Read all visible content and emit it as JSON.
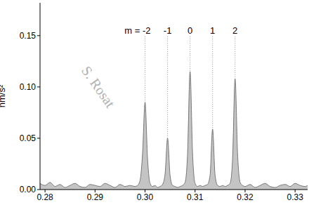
{
  "chart_data": {
    "type": "area",
    "ylabel": "nm/s²",
    "watermark": "S. Rosat",
    "color": "#c4c4c4",
    "x": [
      0.279,
      0.28,
      0.281,
      0.282,
      0.283,
      0.284,
      0.285,
      0.286,
      0.287,
      0.288,
      0.289,
      0.29,
      0.291,
      0.292,
      0.293,
      0.294,
      0.295,
      0.296,
      0.297,
      0.298,
      0.2985,
      0.299,
      0.2995,
      0.3,
      0.3005,
      0.301,
      0.3015,
      0.302,
      0.3025,
      0.303,
      0.3035,
      0.304,
      0.3045,
      0.305,
      0.3055,
      0.306,
      0.3065,
      0.307,
      0.3075,
      0.308,
      0.3085,
      0.309,
      0.3095,
      0.31,
      0.3105,
      0.311,
      0.3115,
      0.312,
      0.3125,
      0.313,
      0.3135,
      0.314,
      0.3145,
      0.315,
      0.3155,
      0.316,
      0.3165,
      0.317,
      0.3175,
      0.318,
      0.3185,
      0.319,
      0.3195,
      0.32,
      0.321,
      0.322,
      0.323,
      0.324,
      0.325,
      0.326,
      0.327,
      0.328,
      0.329,
      0.33,
      0.331,
      0.332,
      0.3325
    ],
    "values": [
      0.006,
      0.004,
      0.007,
      0.003,
      0.005,
      0.002,
      0.004,
      0.006,
      0.003,
      0.002,
      0.005,
      0.004,
      0.003,
      0.006,
      0.004,
      0.002,
      0.005,
      0.003,
      0.004,
      0.003,
      0.004,
      0.009,
      0.035,
      0.085,
      0.03,
      0.006,
      0.003,
      0.004,
      0.002,
      0.003,
      0.005,
      0.015,
      0.05,
      0.014,
      0.004,
      0.003,
      0.002,
      0.003,
      0.004,
      0.007,
      0.035,
      0.115,
      0.035,
      0.006,
      0.003,
      0.004,
      0.003,
      0.004,
      0.005,
      0.014,
      0.059,
      0.014,
      0.004,
      0.003,
      0.004,
      0.003,
      0.004,
      0.006,
      0.03,
      0.108,
      0.035,
      0.007,
      0.004,
      0.003,
      0.005,
      0.002,
      0.004,
      0.006,
      0.003,
      0.002,
      0.004,
      0.005,
      0.003,
      0.006,
      0.004,
      0.003,
      0.004
    ],
    "xlim": [
      0.279,
      0.3325
    ],
    "xticks": [
      0.28,
      0.29,
      {
        "value": 0.3,
        "label": "0.30"
      },
      0.31,
      0.32,
      0.33
    ],
    "ylim": [
      0,
      0.182
    ],
    "yticks": [
      {
        "value": 0,
        "label": "0.00"
      },
      {
        "value": 0.05,
        "label": "0.05"
      },
      {
        "value": 0.1,
        "label": "0.10"
      },
      {
        "value": 0.15,
        "label": "0.15"
      }
    ],
    "annotations": [
      {
        "text": "m = -2",
        "x": 0.3
      },
      {
        "text": "-1",
        "x": 0.3045
      },
      {
        "text": "0",
        "x": 0.309
      },
      {
        "text": "1",
        "x": 0.3135
      },
      {
        "text": "2",
        "x": 0.318
      }
    ]
  }
}
